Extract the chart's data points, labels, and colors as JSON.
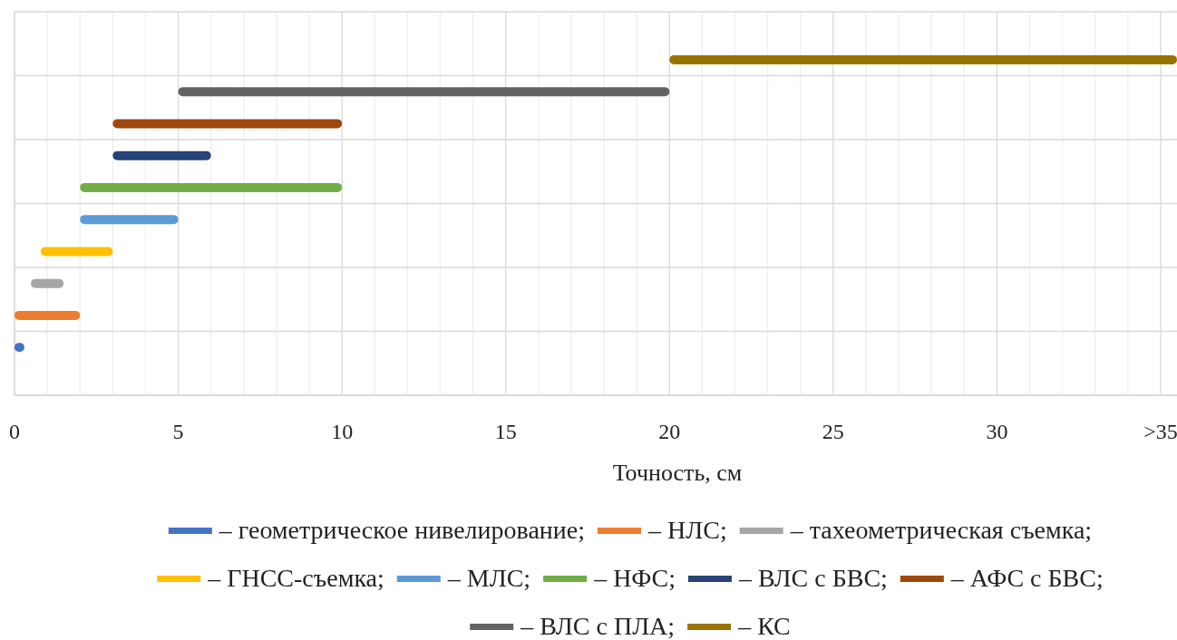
{
  "chart_data": {
    "type": "bar",
    "orientation": "horizontal",
    "xlabel": "Точность, см",
    "categories": [
      null,
      null,
      null,
      null,
      null,
      null,
      null,
      null,
      null,
      null,
      null,
      null
    ],
    "xlim": [
      0,
      35.5
    ],
    "xticks": [
      0,
      {
        "value": 1,
        "label": null
      },
      {
        "value": 2,
        "label": null
      },
      {
        "value": 3,
        "label": null
      },
      {
        "value": 4,
        "label": null
      },
      5,
      {
        "value": 6,
        "label": null
      },
      {
        "value": 7,
        "label": null
      },
      {
        "value": 8,
        "label": null
      },
      {
        "value": 9,
        "label": null
      },
      10,
      {
        "value": 11,
        "label": null
      },
      {
        "value": 12,
        "label": null
      },
      {
        "value": 13,
        "label": null
      },
      {
        "value": 14,
        "label": null
      },
      15,
      {
        "value": 16,
        "label": null
      },
      {
        "value": 17,
        "label": null
      },
      {
        "value": 18,
        "label": null
      },
      {
        "value": 19,
        "label": null
      },
      20,
      {
        "value": 21,
        "label": null
      },
      {
        "value": 22,
        "label": null
      },
      {
        "value": 23,
        "label": null
      },
      {
        "value": 24,
        "label": null
      },
      25,
      {
        "value": 26,
        "label": null
      },
      {
        "value": 27,
        "label": null
      },
      {
        "value": 28,
        "label": null
      },
      {
        "value": 29,
        "label": null
      },
      30,
      {
        "value": 31,
        "label": null
      },
      {
        "value": 32,
        "label": null
      },
      {
        "value": 33,
        "label": null
      },
      {
        "value": 34,
        "label": null
      },
      {
        "value": 35,
        "label": ">35"
      }
    ],
    "grid": true,
    "legend": "bottom",
    "series": [
      {
        "name": "– геометрическое нивелирование;",
        "color": "#4472c4",
        "values": [
          null,
          null,
          null,
          null,
          null,
          null,
          null,
          null,
          null,
          null,
          0.3,
          null
        ],
        "base": [
          null,
          null,
          null,
          null,
          null,
          null,
          null,
          null,
          null,
          null,
          0,
          null
        ]
      },
      {
        "name": "– НЛС;",
        "color": "#ed7d31",
        "values": [
          null,
          null,
          null,
          null,
          null,
          null,
          null,
          null,
          null,
          2,
          null,
          null
        ],
        "base": [
          null,
          null,
          null,
          null,
          null,
          null,
          null,
          null,
          null,
          0,
          null,
          null
        ]
      },
      {
        "name": "– тахеометрическая съемка;",
        "color": "#a5a5a5",
        "values": [
          null,
          null,
          null,
          null,
          null,
          null,
          null,
          null,
          1,
          null,
          null,
          null
        ],
        "base": [
          null,
          null,
          null,
          null,
          null,
          null,
          null,
          null,
          0.5,
          null,
          null,
          null
        ]
      },
      {
        "name": "– ГНСС-съемка;",
        "color": "#ffc000",
        "values": [
          null,
          null,
          null,
          null,
          null,
          null,
          null,
          2.2,
          null,
          null,
          null,
          null
        ],
        "base": [
          null,
          null,
          null,
          null,
          null,
          null,
          null,
          0.8,
          null,
          null,
          null,
          null
        ]
      },
      {
        "name": "– МЛС;",
        "color": "#5b9bd5",
        "values": [
          null,
          null,
          null,
          null,
          null,
          null,
          3,
          null,
          null,
          null,
          null,
          null
        ],
        "base": [
          null,
          null,
          null,
          null,
          null,
          null,
          2,
          null,
          null,
          null,
          null,
          null
        ]
      },
      {
        "name": "– НФС;",
        "color": "#70ad47",
        "values": [
          null,
          null,
          null,
          null,
          null,
          8,
          null,
          null,
          null,
          null,
          null,
          null
        ],
        "base": [
          null,
          null,
          null,
          null,
          null,
          2,
          null,
          null,
          null,
          null,
          null,
          null
        ]
      },
      {
        "name": "– ВЛС с БВС;",
        "color": "#264478",
        "values": [
          null,
          null,
          null,
          null,
          3,
          null,
          null,
          null,
          null,
          null,
          null,
          null
        ],
        "base": [
          null,
          null,
          null,
          null,
          3,
          null,
          null,
          null,
          null,
          null,
          null,
          null
        ]
      },
      {
        "name": "– АФС с БВС;",
        "color": "#9e480e",
        "values": [
          null,
          null,
          null,
          7,
          null,
          null,
          null,
          null,
          null,
          null,
          null,
          null
        ],
        "base": [
          null,
          null,
          null,
          3,
          null,
          null,
          null,
          null,
          null,
          null,
          null,
          null
        ]
      },
      {
        "name": "– ВЛС с ПЛА;",
        "color": "#636363",
        "values": [
          null,
          null,
          15,
          null,
          null,
          null,
          null,
          null,
          null,
          null,
          null,
          null
        ],
        "base": [
          null,
          null,
          5,
          null,
          null,
          null,
          null,
          null,
          null,
          null,
          null,
          null
        ]
      },
      {
        "name": "– КС",
        "color": "#997300",
        "values": [
          null,
          15.5,
          null,
          null,
          null,
          null,
          null,
          null,
          null,
          null,
          null,
          null
        ],
        "base": [
          null,
          20,
          null,
          null,
          null,
          null,
          null,
          null,
          null,
          null,
          null,
          null
        ]
      }
    ]
  }
}
